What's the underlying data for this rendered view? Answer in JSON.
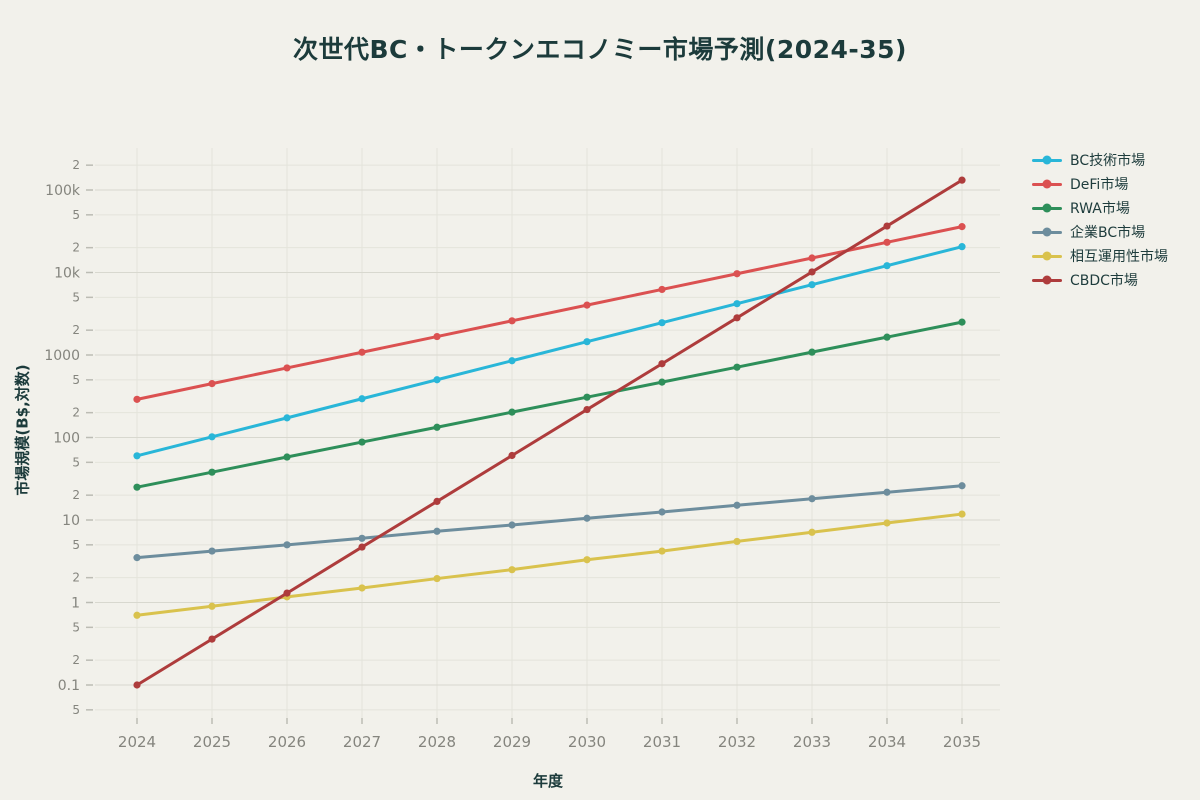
{
  "title": "次世代BC・トークンエコノミー市場予測(2024-35)",
  "colors": {
    "background": "#f2f1eb",
    "title_text": "#1c3b3b",
    "tick_text": "#85857e",
    "grid_major": "#d8d8cf",
    "grid_minor": "#e4e4db",
    "tick_mark": "#bcbcb4"
  },
  "legend": {
    "position": "right",
    "items": [
      {
        "label": "BC技術市場",
        "color": "#29b6d8"
      },
      {
        "label": "DeFi市場",
        "color": "#db5151"
      },
      {
        "label": "RWA市場",
        "color": "#2e8f5a"
      },
      {
        "label": "企業BC市場",
        "color": "#6d8d9d"
      },
      {
        "label": "相互運用性市場",
        "color": "#d9c24d"
      },
      {
        "label": "CBDC市場",
        "color": "#ae3c3c"
      }
    ]
  },
  "chart_data": {
    "type": "line",
    "title": "次世代BC・トークンエコノミー市場予測(2024-35)",
    "xlabel": "年度",
    "ylabel": "市場規模(B$,対数)",
    "yscale": "log",
    "ylim": [
      0.04,
      320000
    ],
    "grid": true,
    "markers": true,
    "legend_position": "right",
    "x": [
      2024,
      2025,
      2026,
      2027,
      2028,
      2029,
      2030,
      2031,
      2032,
      2033,
      2034,
      2035
    ],
    "series": [
      {
        "name": "BC技術市場",
        "color": "#29b6d8",
        "values": [
          60,
          102,
          173,
          295,
          501,
          852,
          1449,
          2463,
          4187,
          7118,
          12101,
          20572
        ]
      },
      {
        "name": "DeFi市場",
        "color": "#db5151",
        "values": [
          290,
          450,
          697,
          1080,
          1674,
          2595,
          4022,
          6234,
          9663,
          14978,
          23216,
          35985
        ]
      },
      {
        "name": "RWA市場",
        "color": "#2e8f5a",
        "values": [
          25,
          38,
          58,
          88,
          133,
          203,
          308,
          469,
          712,
          1083,
          1646,
          2502
        ]
      },
      {
        "name": "企業BC市場",
        "color": "#6d8d9d",
        "values": [
          3.5,
          4.2,
          5.0,
          6.0,
          7.3,
          8.7,
          10.5,
          12.5,
          15.1,
          18.1,
          21.7,
          26.0
        ]
      },
      {
        "name": "相互運用性市場",
        "color": "#d9c24d",
        "values": [
          0.7,
          0.9,
          1.17,
          1.5,
          1.95,
          2.5,
          3.3,
          4.2,
          5.5,
          7.1,
          9.2,
          11.8
        ]
      },
      {
        "name": "CBDC市場",
        "color": "#ae3c3c",
        "values": [
          0.1,
          0.36,
          1.3,
          4.7,
          16.8,
          60.5,
          218,
          784,
          2822,
          10158,
          36570,
          131650
        ]
      }
    ],
    "y_ticks": [
      {
        "value": 200000,
        "label": "2",
        "major": false
      },
      {
        "value": 100000,
        "label": "100k",
        "major": true
      },
      {
        "value": 50000,
        "label": "5",
        "major": false
      },
      {
        "value": 20000,
        "label": "2",
        "major": false
      },
      {
        "value": 10000,
        "label": "10k",
        "major": true
      },
      {
        "value": 5000,
        "label": "5",
        "major": false
      },
      {
        "value": 2000,
        "label": "2",
        "major": false
      },
      {
        "value": 1000,
        "label": "1000",
        "major": true
      },
      {
        "value": 500,
        "label": "5",
        "major": false
      },
      {
        "value": 200,
        "label": "2",
        "major": false
      },
      {
        "value": 100,
        "label": "100",
        "major": true
      },
      {
        "value": 50,
        "label": "5",
        "major": false
      },
      {
        "value": 20,
        "label": "2",
        "major": false
      },
      {
        "value": 10,
        "label": "10",
        "major": true
      },
      {
        "value": 5,
        "label": "5",
        "major": false
      },
      {
        "value": 2,
        "label": "2",
        "major": false
      },
      {
        "value": 1,
        "label": "1",
        "major": true
      },
      {
        "value": 0.5,
        "label": "5",
        "major": false
      },
      {
        "value": 0.2,
        "label": "2",
        "major": false
      },
      {
        "value": 0.1,
        "label": "0.1",
        "major": true
      },
      {
        "value": 0.05,
        "label": "5",
        "major": false
      }
    ]
  }
}
